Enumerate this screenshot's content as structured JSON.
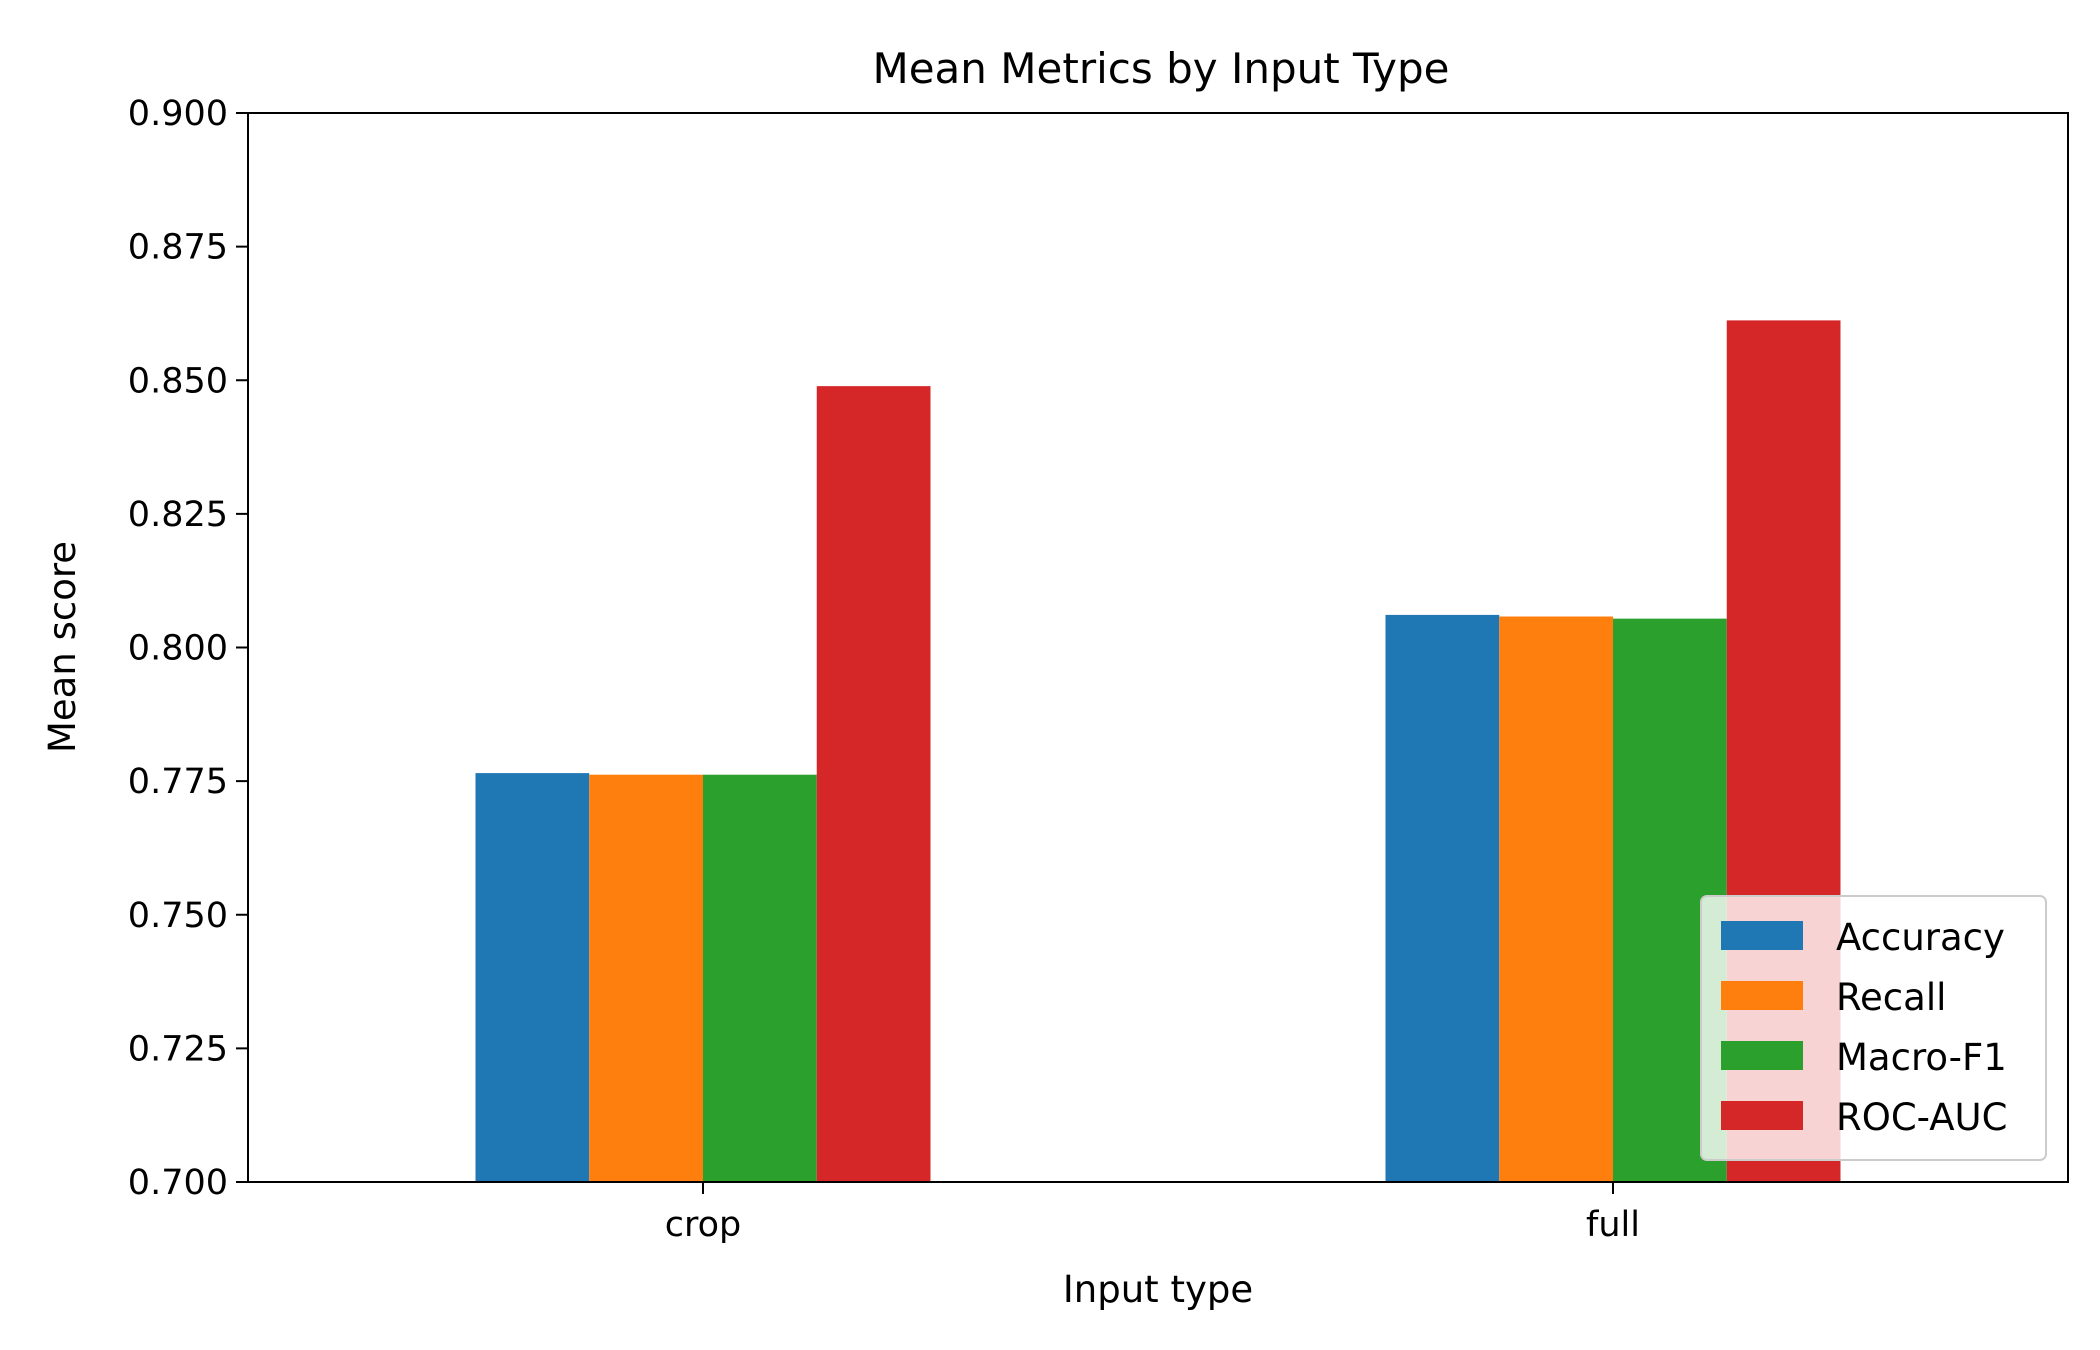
{
  "chart_data": {
    "type": "bar",
    "title": "Mean Metrics by Input Type",
    "xlabel": "Input type",
    "ylabel": "Mean score",
    "categories": [
      "crop",
      "full"
    ],
    "ylim": [
      0.7,
      0.9
    ],
    "yticks": [
      "0.700",
      "0.725",
      "0.750",
      "0.775",
      "0.800",
      "0.825",
      "0.850",
      "0.875",
      "0.900"
    ],
    "series": [
      {
        "name": "Accuracy",
        "color": "#1f77b4",
        "values": [
          0.7765,
          0.8061
        ]
      },
      {
        "name": "Recall",
        "color": "#ff7f0e",
        "values": [
          0.7762,
          0.8058
        ]
      },
      {
        "name": "Macro-F1",
        "color": "#2ca02c",
        "values": [
          0.7762,
          0.8054
        ]
      },
      {
        "name": "ROC-AUC",
        "color": "#d62728",
        "values": [
          0.8489,
          0.8612
        ]
      }
    ],
    "legend_position": "lower-right",
    "grid": false
  }
}
